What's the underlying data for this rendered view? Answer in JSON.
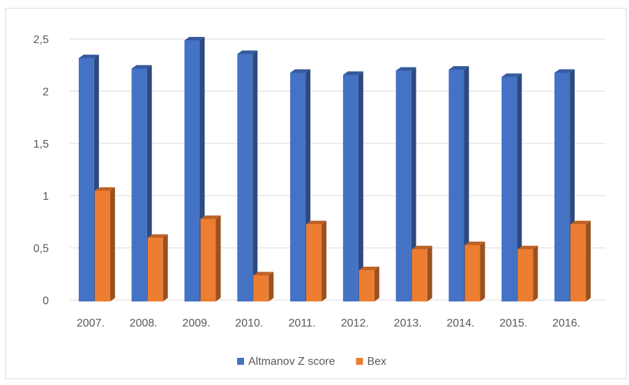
{
  "chart_data": {
    "type": "bar3d",
    "categories": [
      "2007.",
      "2008.",
      "2009.",
      "2010.",
      "2011.",
      "2012.",
      "2013.",
      "2014.",
      "2015.",
      "2016."
    ],
    "series": [
      {
        "name": "Altmanov Z score",
        "color": "#4472c4",
        "values": [
          2.33,
          2.23,
          2.5,
          2.37,
          2.19,
          2.17,
          2.21,
          2.22,
          2.15,
          2.19
        ]
      },
      {
        "name": "Bex",
        "color": "#ed7d31",
        "values": [
          1.06,
          0.61,
          0.79,
          0.25,
          0.74,
          0.3,
          0.5,
          0.54,
          0.5,
          0.74
        ]
      }
    ],
    "ylim": [
      0,
      2.5
    ],
    "yticks": [
      0,
      {
        "value": 0.5,
        "label": "0,5"
      },
      1,
      {
        "value": 1.5,
        "label": "1,5"
      },
      2,
      {
        "value": 2.5,
        "label": "2,5"
      }
    ],
    "grid": true,
    "legend": "bottom"
  }
}
